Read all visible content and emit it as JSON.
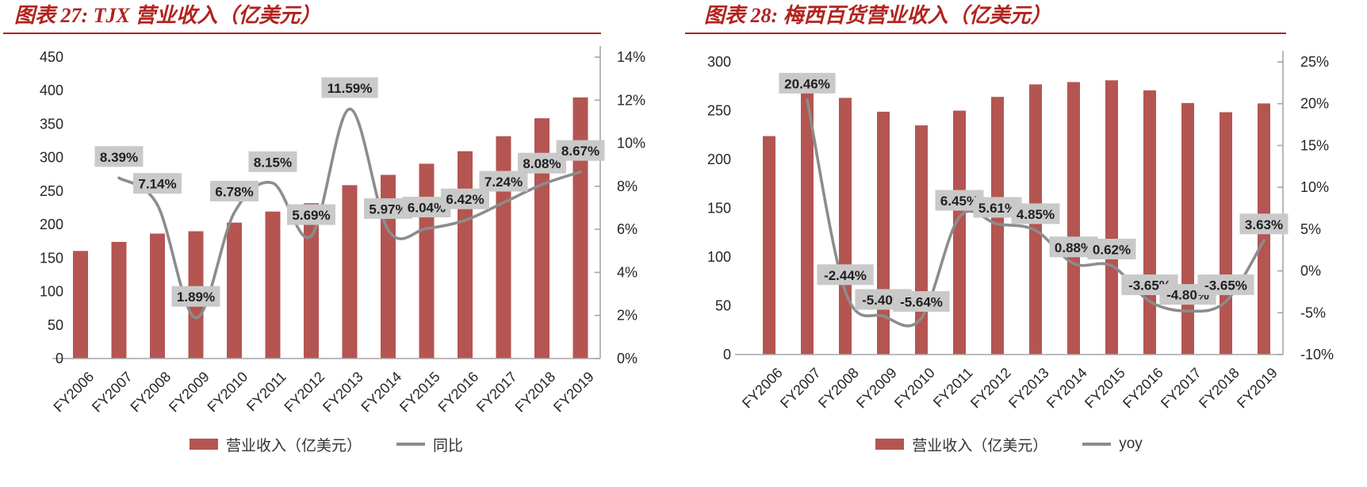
{
  "colors": {
    "bar": "#b45551",
    "line": "#8c8c8c",
    "label_box": "#c9c9c9",
    "label_text": "#1f1f1f",
    "axis_text": "#262626",
    "axis_line": "#a6a6a6",
    "title": "#b2231f",
    "background": "#ffffff"
  },
  "chart_data": [
    {
      "type": "bar+line",
      "title": "图表 27: TJX 营业收入（亿美元）",
      "categories": [
        "FY2006",
        "FY2007",
        "FY2008",
        "FY2009",
        "FY2010",
        "FY2011",
        "FY2012",
        "FY2013",
        "FY2014",
        "FY2015",
        "FY2016",
        "FY2017",
        "FY2018",
        "FY2019"
      ],
      "series": [
        {
          "name": "营业收入（亿美元）",
          "type": "bar",
          "axis": "left",
          "values": [
            160.6,
            174.1,
            186.5,
            190.0,
            202.9,
            219.4,
            231.9,
            258.8,
            274.2,
            290.8,
            309.5,
            331.9,
            358.7,
            389.8
          ]
        },
        {
          "name": "同比",
          "type": "line",
          "axis": "right",
          "values": [
            null,
            8.39,
            7.14,
            1.89,
            6.78,
            8.15,
            5.69,
            11.59,
            5.97,
            6.04,
            6.42,
            7.24,
            8.08,
            8.67
          ],
          "labels": [
            null,
            "8.39%",
            "7.14%",
            "1.89%",
            "6.78%",
            "8.15%",
            "5.69%",
            "11.59%",
            "5.97%",
            "6.04%",
            "6.42%",
            "7.24%",
            "8.08%",
            "8.67%"
          ]
        }
      ],
      "left_axis": {
        "min": 0,
        "max": 450,
        "tick_values": [
          0,
          50,
          100,
          150,
          200,
          250,
          300,
          350,
          400,
          450
        ],
        "tick_labels": [
          "0",
          "50",
          "100",
          "150",
          "200",
          "250",
          "300",
          "350",
          "400",
          "450"
        ]
      },
      "right_axis": {
        "min": 0,
        "max": 14,
        "tick_values": [
          0,
          2,
          4,
          6,
          8,
          10,
          12,
          14
        ],
        "tick_labels": [
          "0%",
          "2%",
          "4%",
          "6%",
          "8%",
          "10%",
          "12%",
          "14%"
        ]
      },
      "grid": "off",
      "legend_position": "bottom"
    },
    {
      "type": "bar+line",
      "title": "图表 28: 梅西百货营业收入（亿美元）",
      "categories": [
        "FY2006",
        "FY2007",
        "FY2008",
        "FY2009",
        "FY2010",
        "FY2011",
        "FY2012",
        "FY2013",
        "FY2014",
        "FY2015",
        "FY2016",
        "FY2017",
        "FY2018",
        "FY2019"
      ],
      "series": [
        {
          "name": "营业收入（亿美元）",
          "type": "bar",
          "axis": "left",
          "values": [
            223.9,
            269.7,
            263.1,
            248.9,
            234.9,
            250.0,
            264.1,
            276.9,
            279.3,
            281.1,
            270.8,
            257.8,
            248.4,
            257.4
          ]
        },
        {
          "name": "yoy",
          "type": "line",
          "axis": "right",
          "values": [
            null,
            20.46,
            -2.44,
            -5.4,
            -5.64,
            6.45,
            5.61,
            4.85,
            0.88,
            0.62,
            -3.65,
            -4.8,
            -3.65,
            3.63
          ],
          "labels": [
            null,
            "20.46%",
            "-2.44%",
            "-5.40%",
            "-5.64%",
            "6.45%",
            "5.61%",
            "4.85%",
            "0.88%",
            "0.62%",
            "-3.65%",
            "-4.80%",
            "-3.65%",
            "3.63%"
          ]
        }
      ],
      "left_axis": {
        "min": 0,
        "max": 300,
        "tick_values": [
          0,
          50,
          100,
          150,
          200,
          250,
          300
        ],
        "tick_labels": [
          "0",
          "50",
          "100",
          "150",
          "200",
          "250",
          "300"
        ]
      },
      "right_axis": {
        "min": -10,
        "max": 25,
        "tick_values": [
          -10,
          -5,
          0,
          5,
          10,
          15,
          20,
          25
        ],
        "tick_labels": [
          "-10%",
          "-5%",
          "0%",
          "5%",
          "10%",
          "15%",
          "20%",
          "25%"
        ]
      },
      "grid": "off",
      "legend_position": "bottom"
    }
  ]
}
